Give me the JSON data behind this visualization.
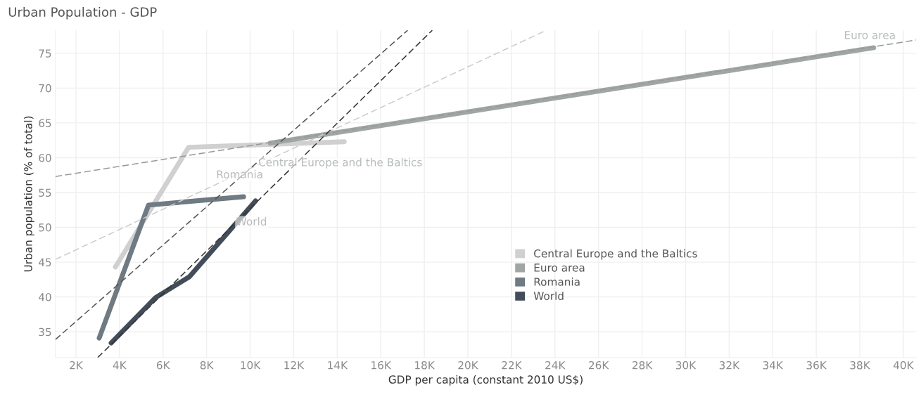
{
  "chart_data": {
    "type": "line",
    "title": "Urban Population - GDP",
    "xlabel": "GDP per capita (constant 2010 US$)",
    "ylabel": "Urban population (% of total)",
    "series": [
      {
        "name": "Central Europe and the Baltics",
        "color": "#d0d0d0",
        "x": [
          3811,
          7174,
          14322
        ],
        "values": [
          44.3,
          61.5,
          62.3
        ]
      },
      {
        "name": "Euro area",
        "color": "#a0a6a4",
        "x": [
          10926,
          38640
        ],
        "values": [
          62.1,
          75.8
        ]
      },
      {
        "name": "Romania",
        "color": "#6f7a82",
        "x": [
          3067,
          5331,
          9700
        ],
        "values": [
          34.1,
          53.2,
          54.4
        ]
      },
      {
        "name": "World",
        "color": "#434d59",
        "x": [
          3617,
          5655,
          7207,
          10247
        ],
        "values": [
          33.4,
          39.9,
          42.9,
          53.8
        ]
      },
      {
        "type": "line",
        "line_style": "dashed",
        "color": "#cccccc",
        "x": [
          1062,
          23600
        ],
        "values": [
          45.4,
          78.3
        ]
      },
      {
        "type": "line",
        "line_style": "dashed",
        "color": "#999999",
        "x": [
          1062,
          40580
        ],
        "values": [
          57.3,
          76.9
        ]
      },
      {
        "type": "line",
        "line_style": "dashed",
        "color": "#555555",
        "x": [
          1062,
          17233
        ],
        "values": [
          33.9,
          78.3
        ]
      },
      {
        "type": "line",
        "line_style": "dashed",
        "color": "#333333",
        "x": [
          3000,
          18364
        ],
        "values": [
          31.3,
          78.3
        ]
      }
    ],
    "annotations": [
      {
        "text": "Central Europe and the Baltics",
        "x": 14322,
        "y": 62.3
      },
      {
        "text": "Euro area",
        "x": 38640,
        "y": 75.8
      },
      {
        "text": "Romania",
        "x": 9700,
        "y": 54.4
      },
      {
        "text": "World",
        "x": 10247,
        "y": 53.8
      }
    ],
    "xlim": [
      1050,
      40600
    ],
    "ylim": [
      31.3,
      78.3
    ],
    "xticks": [
      {
        "value": 2000,
        "label": "2K"
      },
      {
        "value": 4000,
        "label": "4K"
      },
      {
        "value": 6000,
        "label": "6K"
      },
      {
        "value": 8000,
        "label": "8K"
      },
      {
        "value": 10000,
        "label": "10K"
      },
      {
        "value": 12000,
        "label": "12K"
      },
      {
        "value": 14000,
        "label": "14K"
      },
      {
        "value": 16000,
        "label": "16K"
      },
      {
        "value": 18000,
        "label": "18K"
      },
      {
        "value": 20000,
        "label": "20K"
      },
      {
        "value": 22000,
        "label": "22K"
      },
      {
        "value": 24000,
        "label": "24K"
      },
      {
        "value": 26000,
        "label": "26K"
      },
      {
        "value": 28000,
        "label": "28K"
      },
      {
        "value": 30000,
        "label": "30K"
      },
      {
        "value": 32000,
        "label": "32K"
      },
      {
        "value": 34000,
        "label": "34K"
      },
      {
        "value": 36000,
        "label": "36K"
      },
      {
        "value": 38000,
        "label": "38K"
      },
      {
        "value": 40000,
        "label": "40K"
      }
    ],
    "yticks": [
      35,
      40,
      45,
      50,
      55,
      60,
      65,
      70,
      75
    ],
    "grid": true,
    "legend": "bottom",
    "marker": "none",
    "line_style": "solid"
  }
}
